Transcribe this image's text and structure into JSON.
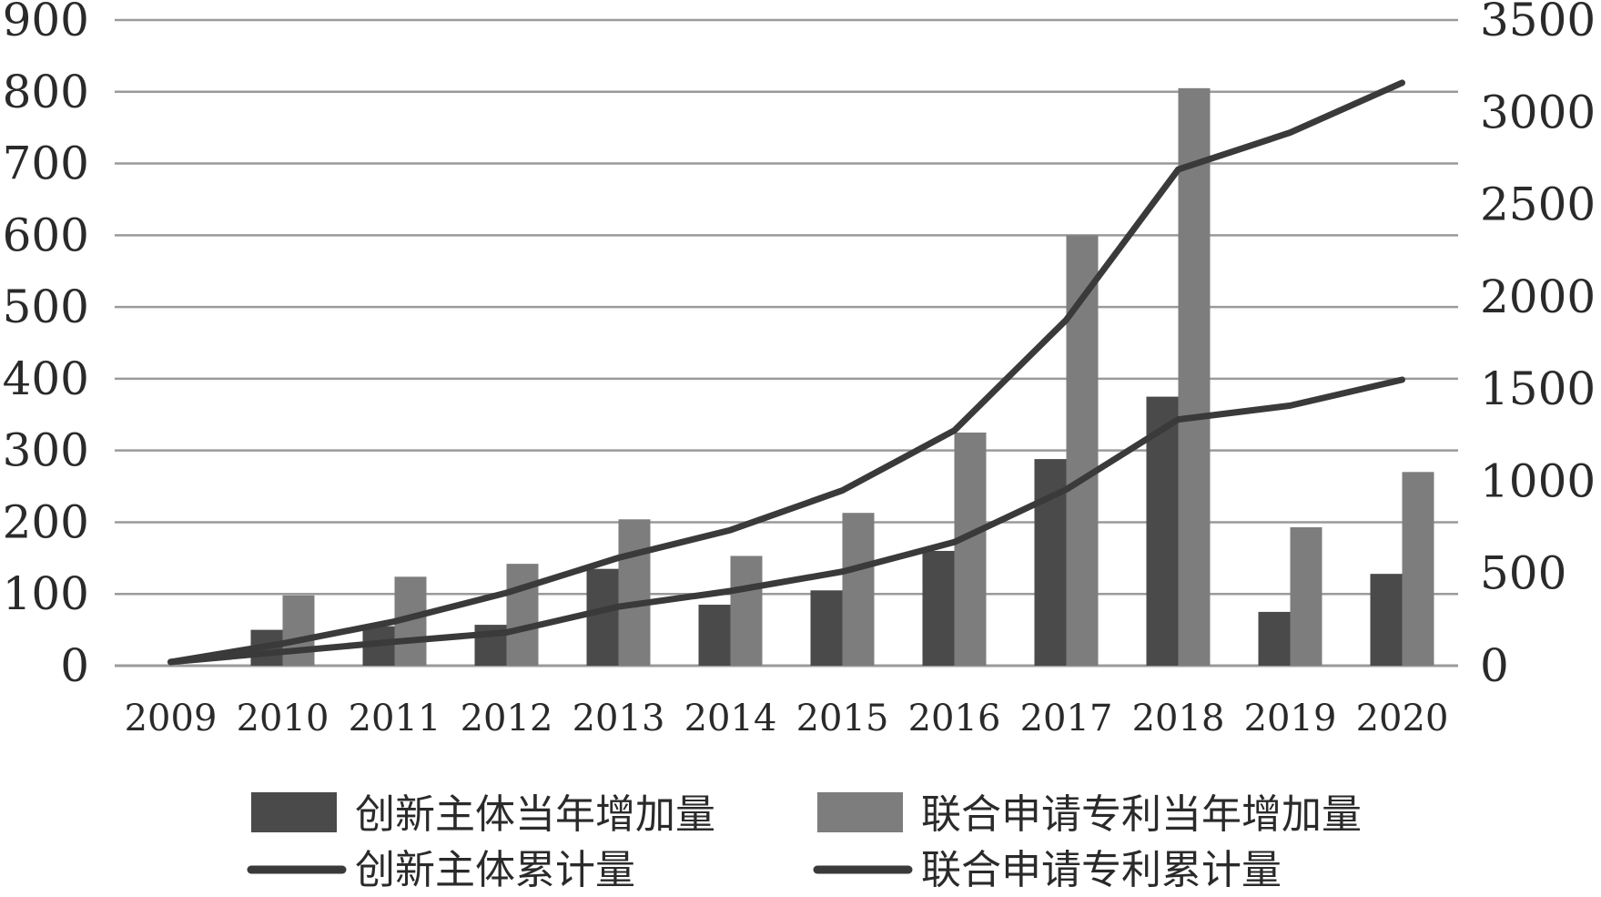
{
  "chart_data": {
    "type": "bar",
    "categories": [
      "2009",
      "2010",
      "2011",
      "2012",
      "2013",
      "2014",
      "2015",
      "2016",
      "2017",
      "2018",
      "2019",
      "2020"
    ],
    "series": [
      {
        "name": "创新主体当年增加量",
        "type": "bar",
        "axis": "left",
        "values": [
          0,
          50,
          55,
          57,
          135,
          85,
          105,
          160,
          288,
          375,
          75,
          128
        ]
      },
      {
        "name": "联合申请专利当年增加量",
        "type": "bar",
        "axis": "left",
        "values": [
          0,
          98,
          124,
          142,
          204,
          153,
          213,
          325,
          600,
          805,
          193,
          270
        ]
      },
      {
        "name": "创新主体累计量",
        "type": "line",
        "axis": "right",
        "values": [
          20,
          75,
          130,
          180,
          320,
          405,
          510,
          670,
          955,
          1335,
          1410,
          1550
        ]
      },
      {
        "name": "联合申请专利累计量",
        "type": "line",
        "axis": "right",
        "values": [
          20,
          120,
          240,
          395,
          585,
          735,
          950,
          1275,
          1875,
          2690,
          2890,
          3160
        ]
      }
    ],
    "left_axis": {
      "ticks": [
        "0",
        "100",
        "200",
        "300",
        "400",
        "500",
        "600",
        "700",
        "800",
        "900"
      ],
      "ylim": [
        0,
        900
      ]
    },
    "right_axis": {
      "ticks": [
        "0",
        "500",
        "1000",
        "1500",
        "2000",
        "2500",
        "3000",
        "3500"
      ],
      "ylim": [
        0,
        3500
      ]
    },
    "grid": true,
    "legend_position": "bottom",
    "colors": {
      "bar_series_1": "#4a4a4a",
      "bar_series_2": "#7d7d7d",
      "line": "#3a3a3a",
      "grid": "#9a9a9a",
      "text": "#2a2a2a"
    }
  }
}
